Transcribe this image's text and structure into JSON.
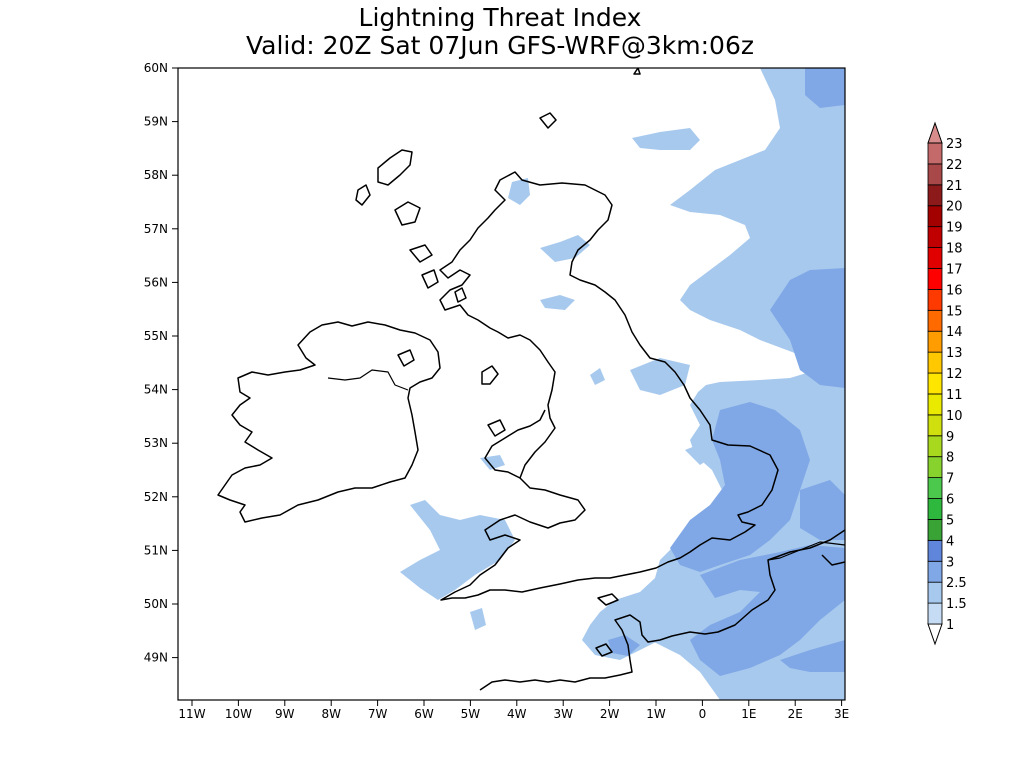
{
  "title": {
    "line1": "Lightning Threat Index",
    "line2": "Valid: 20Z Sat 07Jun GFS-WRF@3km:06z"
  },
  "map": {
    "lat_labels": [
      "60N",
      "59N",
      "58N",
      "57N",
      "56N",
      "55N",
      "54N",
      "53N",
      "52N",
      "51N",
      "50N",
      "49N"
    ],
    "lon_labels": [
      "11W",
      "10W",
      "9W",
      "8W",
      "7W",
      "6W",
      "5W",
      "4W",
      "3W",
      "2W",
      "1W",
      "0",
      "1E",
      "2E",
      "3E"
    ]
  },
  "colorbar": {
    "labels": [
      "1",
      "1.5",
      "2.5",
      "3",
      "4",
      "5",
      "6",
      "7",
      "8",
      "9",
      "10",
      "11",
      "12",
      "13",
      "14",
      "15",
      "16",
      "17",
      "18",
      "19",
      "20",
      "21",
      "22",
      "23"
    ],
    "colors": [
      "#c6dcf5",
      "#a7c9ee",
      "#80a8e6",
      "#5f86db",
      "#3aa335",
      "#2fb83e",
      "#4cc84c",
      "#88d22e",
      "#a9d91e",
      "#cfe00e",
      "#eaea00",
      "#ffe600",
      "#ffc800",
      "#ff9c00",
      "#ff6a00",
      "#ff3a00",
      "#ff0000",
      "#e00000",
      "#c00000",
      "#a30000",
      "#8c1a1a",
      "#a84848",
      "#c46a6a",
      "#d88c8c"
    ]
  },
  "palette": {
    "light_blue": "#a7c9ee",
    "mid_blue": "#80a8e6",
    "coast": "#000000"
  }
}
